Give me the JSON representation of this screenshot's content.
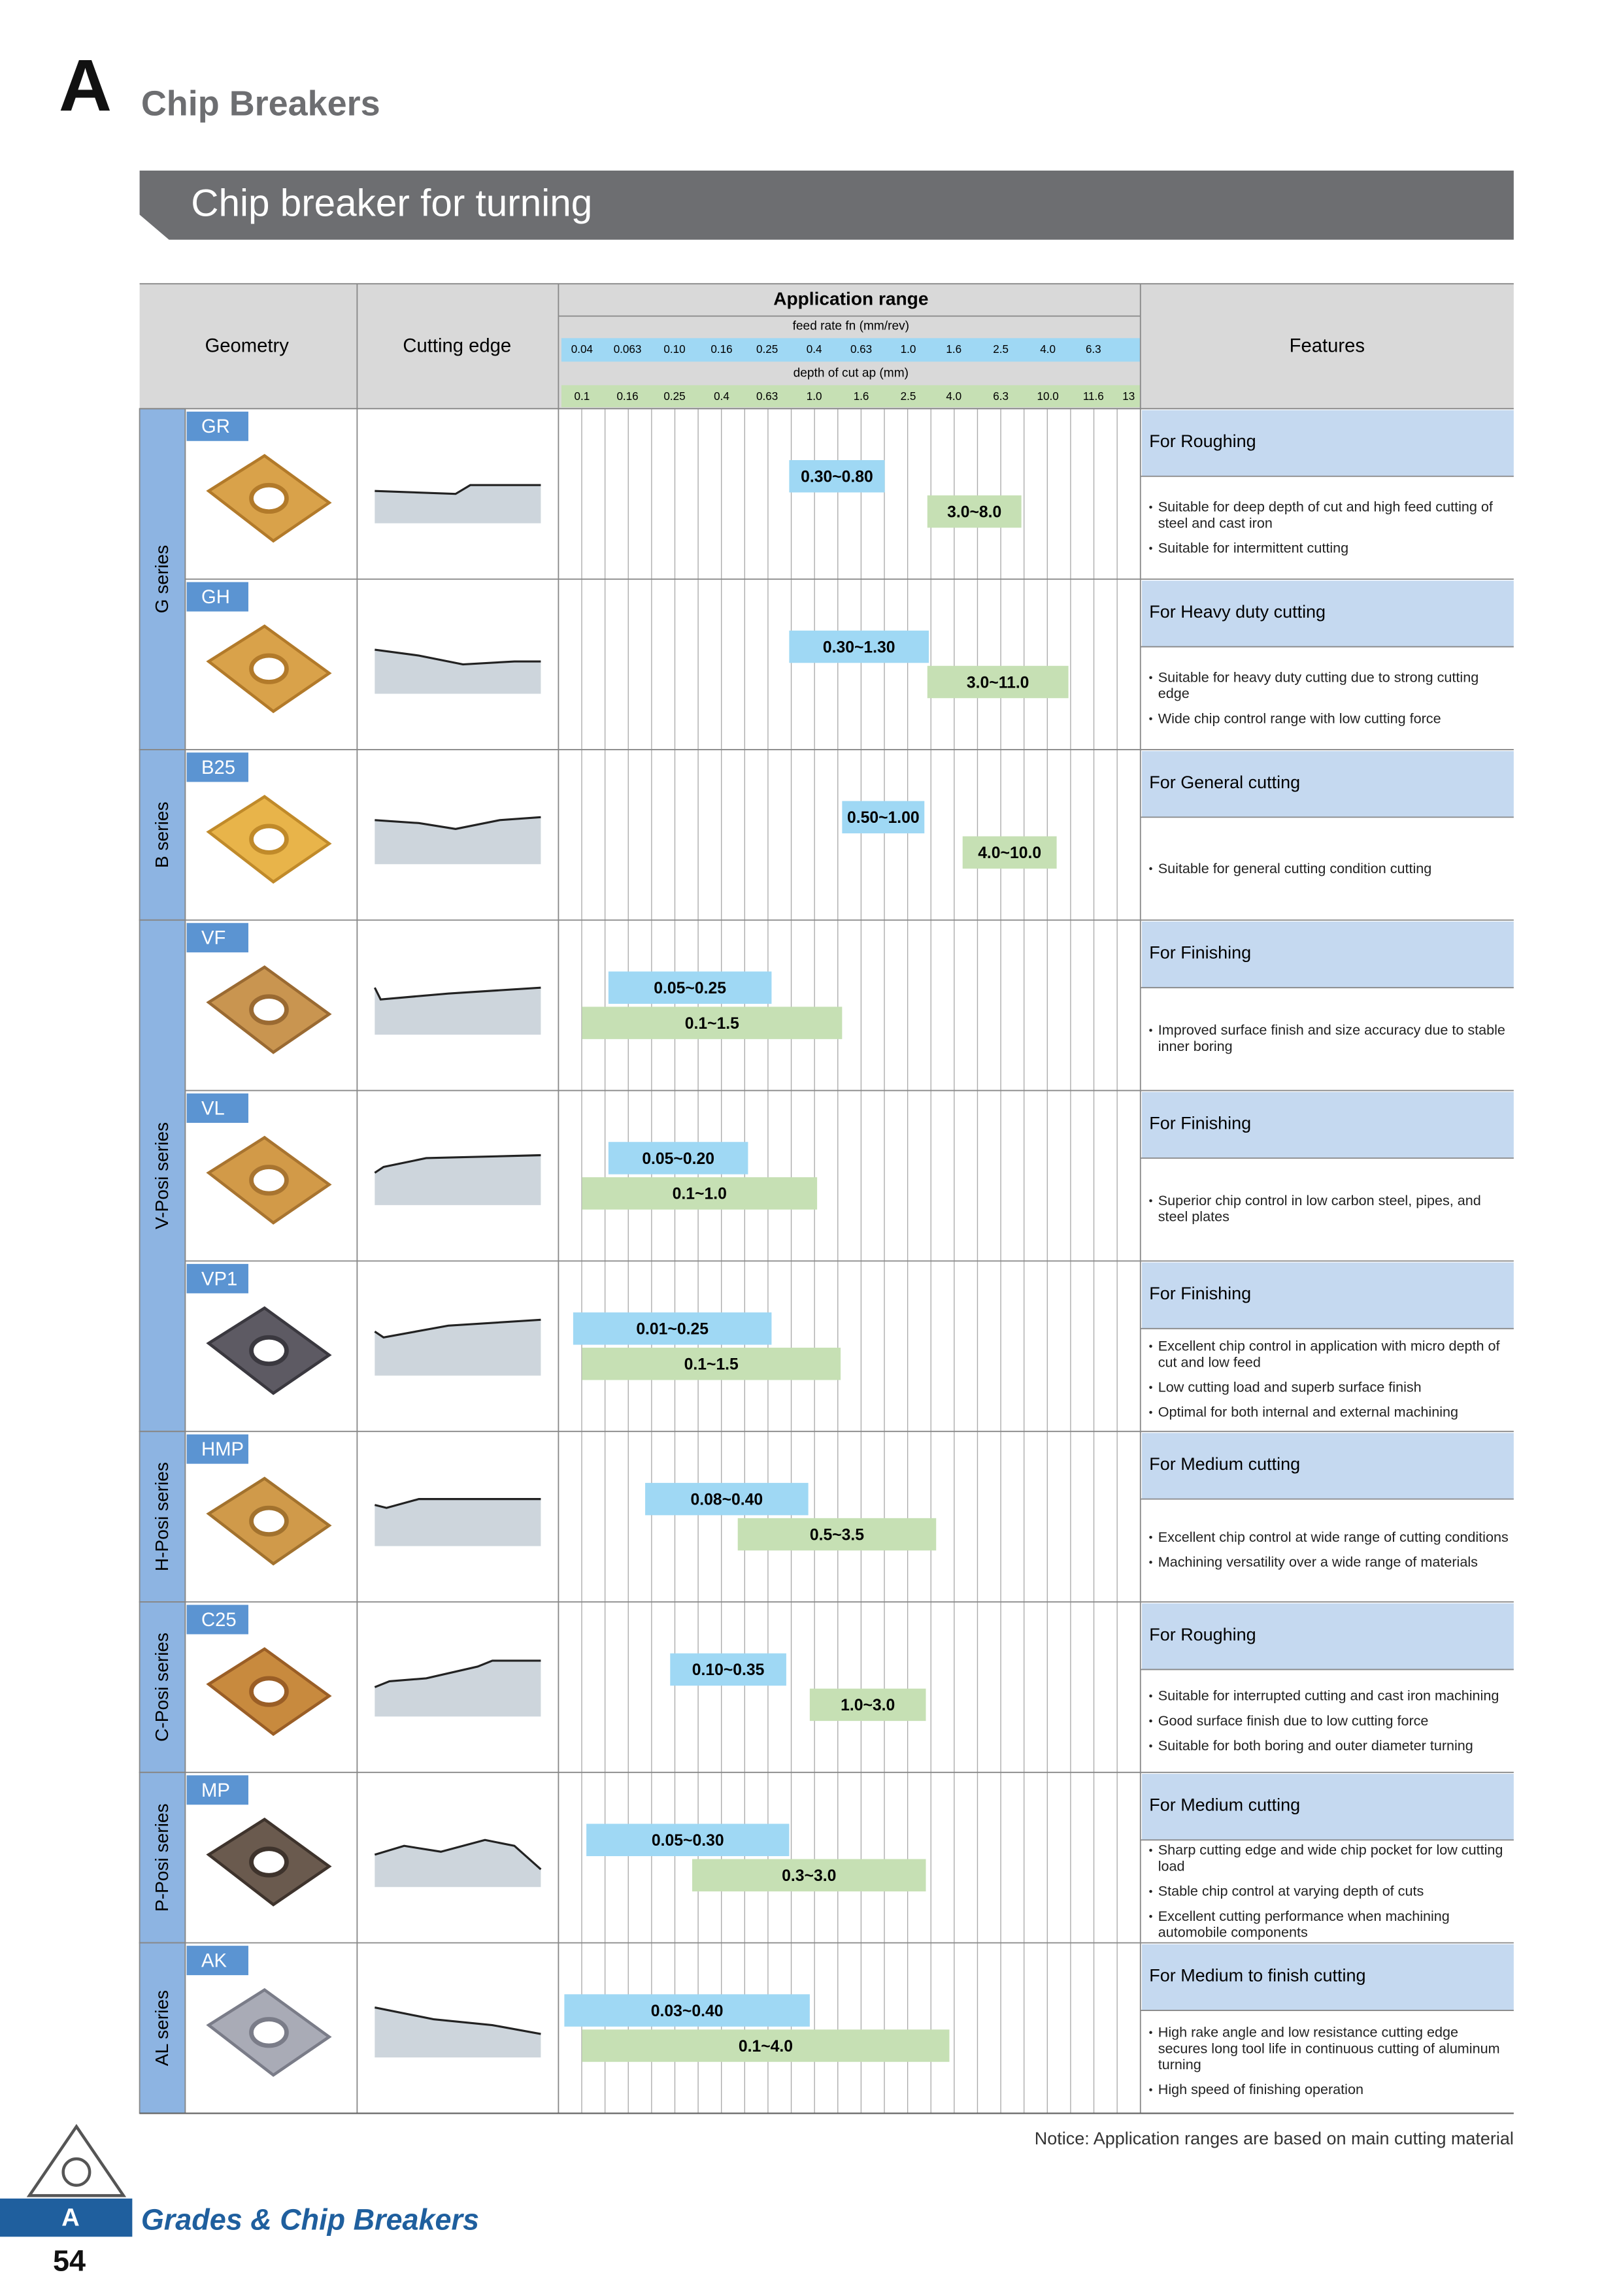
{
  "header": {
    "letter": "A",
    "title": "Chip Breakers"
  },
  "section_title": "Chip breaker for turning",
  "table": {
    "columns": {
      "geometry": "Geometry",
      "cutting_edge": "Cutting edge",
      "application_range": "Application range",
      "features": "Features"
    },
    "feed_label": "feed rate fn (mm/rev)",
    "feed_ticks": [
      "0.04",
      "0.063",
      "0.10",
      "0.16",
      "0.25",
      "0.4",
      "0.63",
      "1.0",
      "1.6",
      "2.5",
      "4.0",
      "6.3"
    ],
    "depth_label": "depth of cut ap (mm)",
    "depth_ticks": [
      "0.1",
      "0.16",
      "0.25",
      "0.4",
      "0.63",
      "1.0",
      "1.6",
      "2.5",
      "4.0",
      "6.3",
      "10.0",
      "11.6",
      "13"
    ],
    "series": [
      {
        "name": "G series",
        "chip_breakers": [
          {
            "name": "GR",
            "feed_range": "0.30~0.80",
            "depth_range": "3.0~8.0",
            "feature_title": "For Roughing",
            "features": [
              "Suitable for deep depth of cut and high feed cutting of steel and cast iron",
              "Suitable for intermittent cutting"
            ]
          },
          {
            "name": "GH",
            "feed_range": "0.30~1.30",
            "depth_range": "3.0~11.0",
            "feature_title": "For Heavy duty cutting",
            "features": [
              "Suitable for heavy duty cutting due to strong cutting edge",
              "Wide chip control range with low cutting force"
            ]
          }
        ]
      },
      {
        "name": "B series",
        "chip_breakers": [
          {
            "name": "B25",
            "feed_range": "0.50~1.00",
            "depth_range": "4.0~10.0",
            "feature_title": "For General cutting",
            "features": [
              "Suitable for general cutting condition cutting"
            ]
          }
        ]
      },
      {
        "name": "V-Posi series",
        "chip_breakers": [
          {
            "name": "VF",
            "feed_range": "0.05~0.25",
            "depth_range": "0.1~1.5",
            "feature_title": "For Finishing",
            "features": [
              "Improved surface finish and size accuracy due to stable inner boring"
            ]
          },
          {
            "name": "VL",
            "feed_range": "0.05~0.20",
            "depth_range": "0.1~1.0",
            "feature_title": "For Finishing",
            "features": [
              "Superior chip control in low carbon steel, pipes, and steel plates"
            ]
          },
          {
            "name": "VP1",
            "feed_range": "0.01~0.25",
            "depth_range": "0.1~1.5",
            "feature_title": "For Finishing",
            "features": [
              "Excellent chip control in application with micro depth of cut and low feed",
              "Low cutting load and superb surface finish",
              "Optimal for both internal and external machining"
            ]
          }
        ]
      },
      {
        "name": "H-Posi series",
        "chip_breakers": [
          {
            "name": "HMP",
            "feed_range": "0.08~0.40",
            "depth_range": "0.5~3.5",
            "feature_title": "For Medium cutting",
            "features": [
              "Excellent chip control at wide range of cutting conditions",
              "Machining versatility over a wide range of materials"
            ]
          }
        ]
      },
      {
        "name": "C-Posi series",
        "chip_breakers": [
          {
            "name": "C25",
            "feed_range": "0.10~0.35",
            "depth_range": "1.0~3.0",
            "feature_title": "For Roughing",
            "features": [
              "Suitable for interrupted cutting and cast iron machining",
              "Good surface finish due to low cutting force",
              "Suitable for both boring and outer diameter turning"
            ]
          }
        ]
      },
      {
        "name": "P-Posi series",
        "chip_breakers": [
          {
            "name": "MP",
            "feed_range": "0.05~0.30",
            "depth_range": "0.3~3.0",
            "feature_title": "For Medium cutting",
            "features": [
              "Sharp cutting edge and wide chip pocket for low cutting load",
              "Stable chip control at varying depth of cuts",
              "Excellent cutting performance when machining automobile components"
            ]
          }
        ]
      },
      {
        "name": "AL series",
        "chip_breakers": [
          {
            "name": "AK",
            "feed_range": "0.03~0.40",
            "depth_range": "0.1~4.0",
            "feature_title": "For Medium to finish cutting",
            "features": [
              "High rake angle and low resistance cutting edge secures long tool life in continuous cutting of aluminum turning",
              "High speed of finishing operation"
            ]
          }
        ]
      }
    ]
  },
  "footer": {
    "notice": "Notice: Application ranges are based on main cutting material",
    "tab": "A",
    "section": "Grades & Chip Breakers",
    "page": "54"
  }
}
